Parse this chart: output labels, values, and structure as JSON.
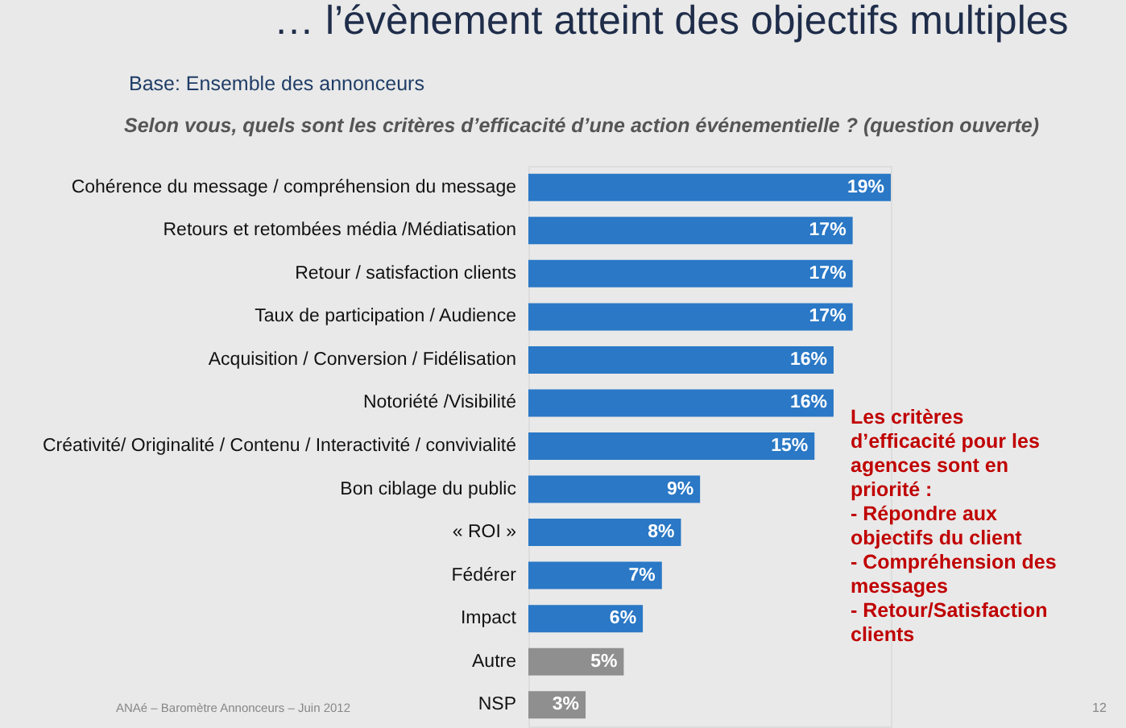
{
  "chart_data": {
    "type": "bar",
    "orientation": "horizontal",
    "title": "… l’évènement atteint des objectifs multiples",
    "subtitle": "Base: Ensemble des annonceurs",
    "categories": [
      "Cohérence du message / compréhension du message",
      "Retours et retombées média /Médiatisation",
      "Retour / satisfaction clients",
      "Taux de participation / Audience",
      "Acquisition / Conversion / Fidélisation",
      "Notoriété /Visibilité",
      "Créativité/ Originalité / Contenu / Interactivité / convivialité",
      "Bon ciblage du public",
      "« ROI »",
      "Fédérer",
      "Impact",
      "Autre",
      "NSP"
    ],
    "values": [
      19,
      17,
      17,
      17,
      16,
      16,
      15,
      9,
      8,
      7,
      6,
      5,
      3
    ],
    "value_labels": [
      "19%",
      "17%",
      "17%",
      "17%",
      "16%",
      "16%",
      "15%",
      "9%",
      "8%",
      "7%",
      "6%",
      "5%",
      "3%"
    ],
    "colors": [
      "#2a78c6",
      "#2a78c6",
      "#2a78c6",
      "#2a78c6",
      "#2a78c6",
      "#2a78c6",
      "#2a78c6",
      "#2a78c6",
      "#2a78c6",
      "#2a78c6",
      "#2a78c6",
      "#8f8f8f",
      "#8f8f8f"
    ],
    "annotations": [
      "Selon vous, quels sont les critères d’efficacité d’une action événementielle ? (question ouverte)",
      "Les critères\nd’efficacité pour les\nagences sont en\npriorité :\n\n- Répondre aux\n  objectifs du client\n- Compréhension des\n  messages\n- Retour/Satisfaction\n  clients",
      "ANAé – Baromètre Annonceurs – Juin 2012",
      "12"
    ]
  }
}
